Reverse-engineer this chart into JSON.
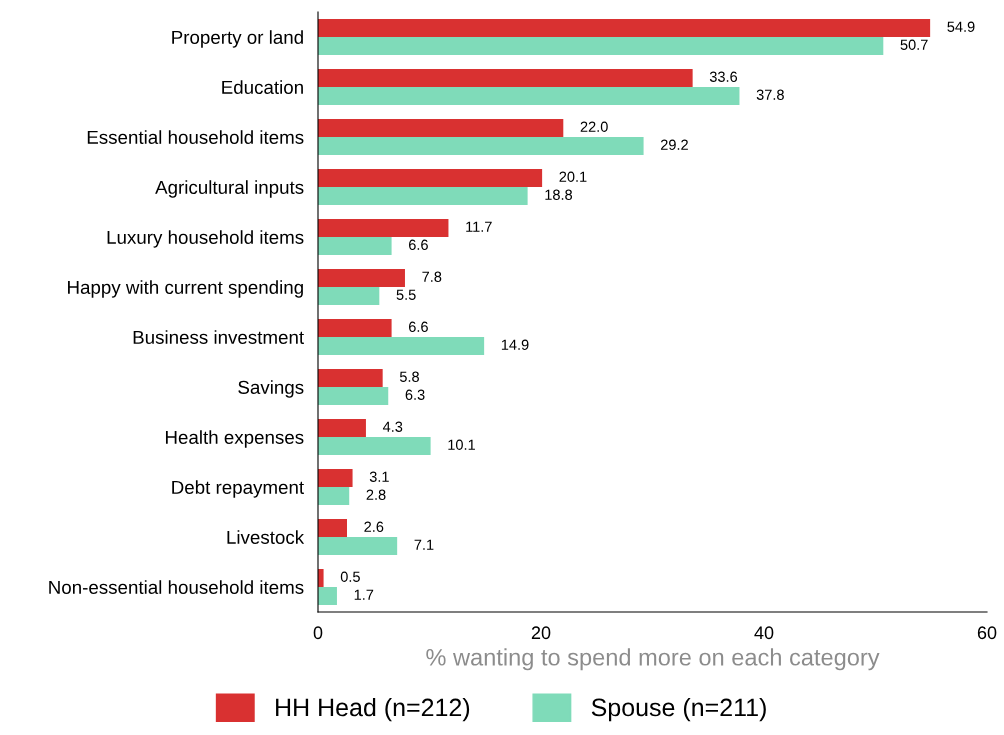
{
  "chart_data": {
    "type": "bar",
    "orientation": "horizontal",
    "categories": [
      "Property or land",
      "Education",
      "Essential household items",
      "Agricultural inputs",
      "Luxury household items",
      "Happy with current spending",
      "Business investment",
      "Savings",
      "Health expenses",
      "Debt repayment",
      "Livestock",
      "Non-essential household items"
    ],
    "series": [
      {
        "name": "HH Head (n=212)",
        "color": "#d93131",
        "values": [
          54.9,
          33.6,
          22.0,
          20.1,
          11.7,
          7.8,
          6.6,
          5.8,
          4.3,
          3.1,
          2.6,
          0.5
        ],
        "value_labels": [
          "54.9",
          "33.6",
          "22.0",
          "20.1",
          "11.7",
          "7.8",
          "6.6",
          "5.8",
          "4.3",
          "3.1",
          "2.6",
          "0.5"
        ]
      },
      {
        "name": "Spouse (n=211)",
        "color": "#7fdbb9",
        "values": [
          50.7,
          37.8,
          29.2,
          18.8,
          6.6,
          5.5,
          14.9,
          6.3,
          10.1,
          2.8,
          7.1,
          1.7
        ],
        "value_labels": [
          "50.7",
          "37.8",
          "29.2",
          "18.8",
          "6.6",
          "5.5",
          "14.9",
          "6.3",
          "10.1",
          "2.8",
          "7.1",
          "1.7"
        ]
      }
    ],
    "xlabel": "% wanting to spend more on each category",
    "xlim": [
      0,
      60
    ],
    "xticks": [
      0,
      20,
      40,
      60
    ],
    "grid": false,
    "legend": "bottom"
  }
}
